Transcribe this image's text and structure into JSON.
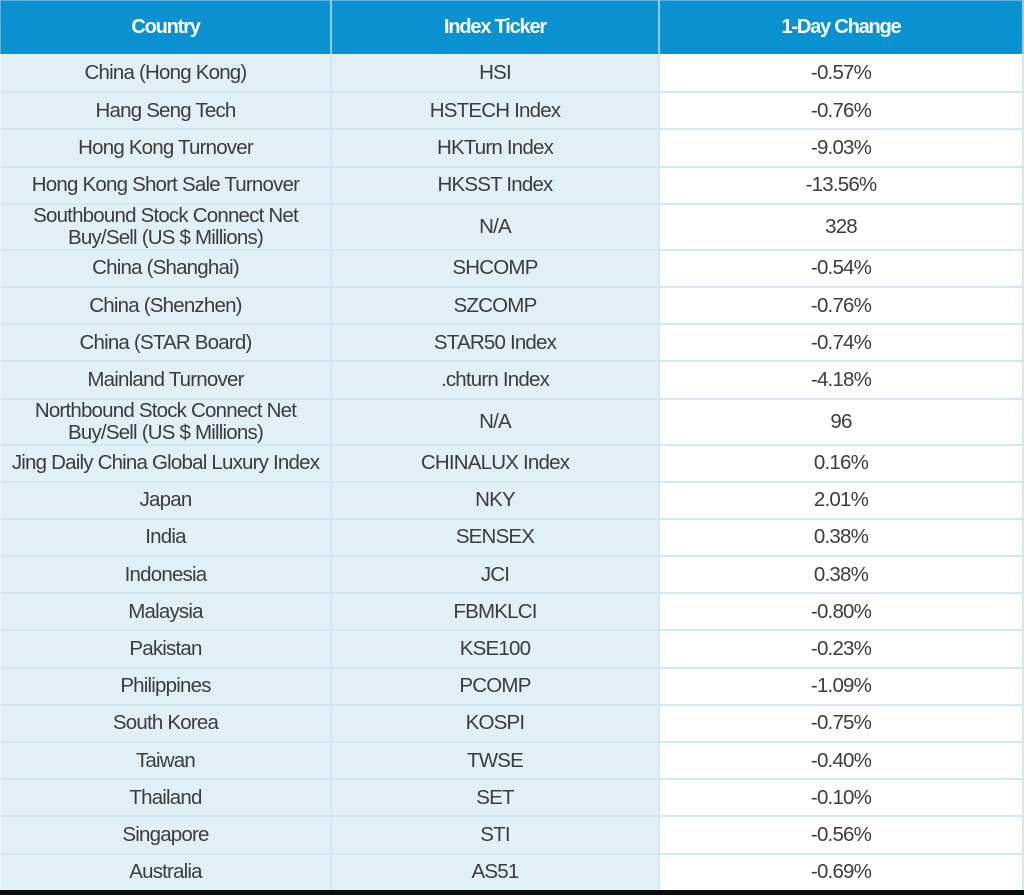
{
  "colors": {
    "header_background": "#0a91d0",
    "header_text": "#ffffff",
    "row_background_light_blue": "#e1eff7",
    "change_column_background": "#ffffff",
    "grid_line": "#d1e8f3",
    "body_text": "#3c3c3c",
    "bottom_bar": "#0c0c0c"
  },
  "table": {
    "columns": [
      {
        "label": "Country"
      },
      {
        "label": "Index Ticker"
      },
      {
        "label": "1-Day Change"
      }
    ],
    "rows": [
      {
        "country": "China (Hong Kong)",
        "ticker": "HSI",
        "change": "-0.57%"
      },
      {
        "country": "Hang Seng Tech",
        "ticker": "HSTECH Index",
        "change": "-0.76%"
      },
      {
        "country": "Hong Kong Turnover",
        "ticker": "HKTurn Index",
        "change": "-9.03%"
      },
      {
        "country": "Hong Kong Short Sale Turnover",
        "ticker": "HKSST Index",
        "change": "-13.56%"
      },
      {
        "country": "Southbound Stock Connect Net\nBuy/Sell (US $ Millions)",
        "ticker": "N/A",
        "change": "328"
      },
      {
        "country": "China (Shanghai)",
        "ticker": "SHCOMP",
        "change": "-0.54%"
      },
      {
        "country": "China (Shenzhen)",
        "ticker": "SZCOMP",
        "change": "-0.76%"
      },
      {
        "country": "China (STAR Board)",
        "ticker": "STAR50 Index",
        "change": "-0.74%"
      },
      {
        "country": "Mainland Turnover",
        "ticker": ".chturn Index",
        "change": "-4.18%"
      },
      {
        "country": "Northbound Stock Connect Net\nBuy/Sell (US $ Millions)",
        "ticker": "N/A",
        "change": "96"
      },
      {
        "country": "Jing Daily China Global Luxury Index",
        "ticker": "CHINALUX Index",
        "change": "0.16%"
      },
      {
        "country": "Japan",
        "ticker": "NKY",
        "change": "2.01%"
      },
      {
        "country": "India",
        "ticker": "SENSEX",
        "change": "0.38%"
      },
      {
        "country": "Indonesia",
        "ticker": "JCI",
        "change": "0.38%"
      },
      {
        "country": "Malaysia",
        "ticker": "FBMKLCI",
        "change": "-0.80%"
      },
      {
        "country": "Pakistan",
        "ticker": "KSE100",
        "change": "-0.23%"
      },
      {
        "country": "Philippines",
        "ticker": "PCOMP",
        "change": "-1.09%"
      },
      {
        "country": "South Korea",
        "ticker": "KOSPI",
        "change": "-0.75%"
      },
      {
        "country": "Taiwan",
        "ticker": "TWSE",
        "change": "-0.40%"
      },
      {
        "country": "Thailand",
        "ticker": "SET",
        "change": "-0.10%"
      },
      {
        "country": "Singapore",
        "ticker": "STI",
        "change": "-0.56%"
      },
      {
        "country": "Australia",
        "ticker": "AS51",
        "change": "-0.69%"
      }
    ]
  },
  "chart_data": {
    "type": "table",
    "title": "",
    "columns": [
      "Country",
      "Index Ticker",
      "1-Day Change"
    ],
    "rows": [
      [
        "China (Hong Kong)",
        "HSI",
        "-0.57%"
      ],
      [
        "Hang Seng Tech",
        "HSTECH Index",
        "-0.76%"
      ],
      [
        "Hong Kong Turnover",
        "HKTurn Index",
        "-9.03%"
      ],
      [
        "Hong Kong Short Sale Turnover",
        "HKSST Index",
        "-13.56%"
      ],
      [
        "Southbound Stock Connect Net Buy/Sell (US $ Millions)",
        "N/A",
        "328"
      ],
      [
        "China (Shanghai)",
        "SHCOMP",
        "-0.54%"
      ],
      [
        "China (Shenzhen)",
        "SZCOMP",
        "-0.76%"
      ],
      [
        "China (STAR Board)",
        "STAR50 Index",
        "-0.74%"
      ],
      [
        "Mainland Turnover",
        ".chturn Index",
        "-4.18%"
      ],
      [
        "Northbound Stock Connect Net Buy/Sell (US $ Millions)",
        "N/A",
        "96"
      ],
      [
        "Jing Daily China Global Luxury Index",
        "CHINALUX Index",
        "0.16%"
      ],
      [
        "Japan",
        "NKY",
        "2.01%"
      ],
      [
        "India",
        "SENSEX",
        "0.38%"
      ],
      [
        "Indonesia",
        "JCI",
        "0.38%"
      ],
      [
        "Malaysia",
        "FBMKLCI",
        "-0.80%"
      ],
      [
        "Pakistan",
        "KSE100",
        "-0.23%"
      ],
      [
        "Philippines",
        "PCOMP",
        "-1.09%"
      ],
      [
        "South Korea",
        "KOSPI",
        "-0.75%"
      ],
      [
        "Taiwan",
        "TWSE",
        "-0.40%"
      ],
      [
        "Thailand",
        "SET",
        "-0.10%"
      ],
      [
        "Singapore",
        "STI",
        "-0.56%"
      ],
      [
        "Australia",
        "AS51",
        "-0.69%"
      ]
    ]
  }
}
